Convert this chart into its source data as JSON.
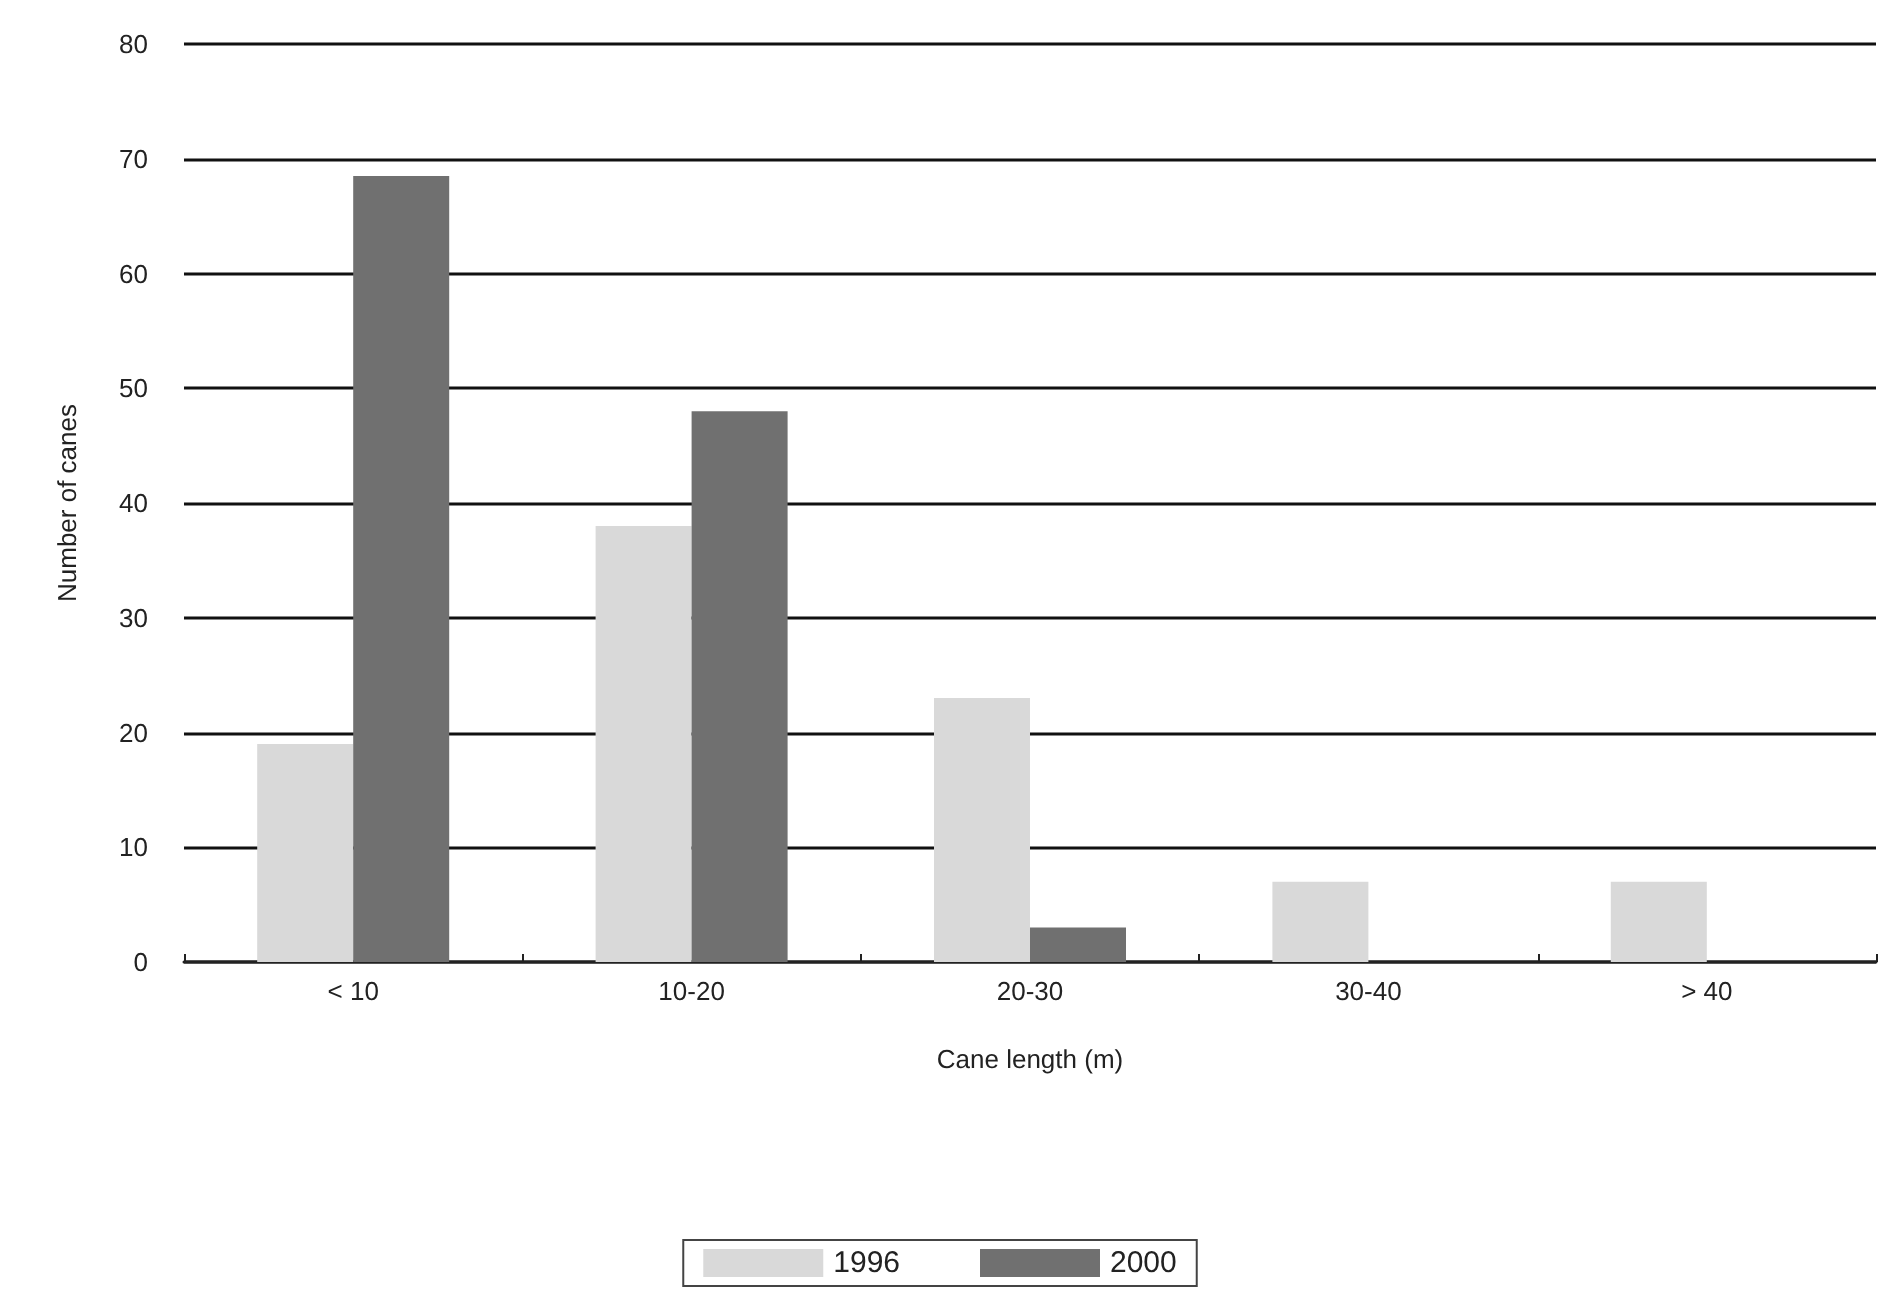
{
  "chart_data": {
    "type": "bar",
    "xlabel": "Cane length (m)",
    "ylabel": "Number of canes",
    "categories": [
      "< 10",
      "10-20",
      "20-30",
      "30-40",
      "> 40"
    ],
    "series": [
      {
        "name": "1996",
        "color": "#d9d9d9",
        "values": [
          19,
          38,
          23,
          7,
          7
        ]
      },
      {
        "name": "2000",
        "color": "#707070",
        "values": [
          68.5,
          48,
          3,
          0,
          0
        ]
      }
    ],
    "ylim": [
      0,
      80
    ],
    "yticks": [
      0,
      10,
      20,
      30,
      40,
      50,
      60,
      70,
      80
    ],
    "grid": "y",
    "legend": "bottom"
  }
}
